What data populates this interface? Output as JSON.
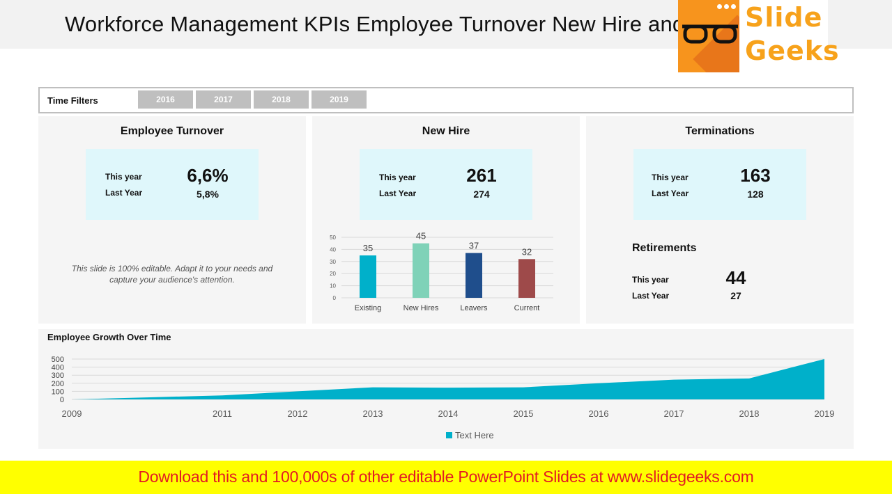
{
  "header": {
    "title": "Workforce Management KPIs Employee Turnover New Hire and Terminations"
  },
  "logo": {
    "line1": "Slide",
    "line2": "Geeks",
    "colors": {
      "square": "#f7941d",
      "text": "#f7a21b"
    }
  },
  "filters": {
    "label": "Time Filters",
    "years": [
      "2016",
      "2017",
      "2018",
      "2019"
    ]
  },
  "turnover": {
    "title": "Employee Turnover",
    "this_year_label": "This year",
    "last_year_label": "Last Year",
    "this_year": "6,6%",
    "last_year": "5,8%",
    "note": "This slide is 100% editable. Adapt it to your needs and capture your audience's attention."
  },
  "new_hire": {
    "title": "New Hire",
    "this_year_label": "This year",
    "last_year_label": "Last Year",
    "this_year": "261",
    "last_year": "274"
  },
  "terminations": {
    "title": "Terminations",
    "this_year_label": "This year",
    "last_year_label": "Last Year",
    "this_year": "163",
    "last_year": "128"
  },
  "retirements": {
    "title": "Retirements",
    "this_year_label": "This year",
    "last_year_label": "Last Year",
    "this_year": "44",
    "last_year": "27"
  },
  "growth": {
    "title": "Employee Growth Over Time"
  },
  "chart_data": [
    {
      "type": "bar",
      "categories": [
        "Existing",
        "New Hires",
        "Leavers",
        "Current"
      ],
      "values": [
        35,
        45,
        37,
        32
      ],
      "colors": [
        "#00b0ca",
        "#7fd2b8",
        "#1f4e8c",
        "#9e4a4a"
      ],
      "ylim": [
        0,
        50
      ],
      "yticks": [
        0,
        10,
        20,
        30,
        40,
        50
      ],
      "grid": true,
      "data_labels": true
    },
    {
      "type": "area",
      "x": [
        2009,
        2010,
        2011,
        2012,
        2013,
        2014,
        2015,
        2016,
        2017,
        2018,
        2019
      ],
      "xticks": [
        2009,
        2011,
        2012,
        2013,
        2014,
        2015,
        2016,
        2017,
        2018,
        2019
      ],
      "series": [
        {
          "name": "Text Here",
          "values": [
            0,
            25,
            50,
            100,
            150,
            145,
            150,
            200,
            245,
            260,
            500
          ],
          "color": "#00b0ca"
        }
      ],
      "ylim": [
        0,
        500
      ],
      "yticks": [
        0,
        100,
        200,
        300,
        400,
        500
      ],
      "grid": true,
      "legend": "bottom"
    }
  ],
  "banner": {
    "text": "Download this and 100,000s of other editable PowerPoint Slides at www.slidegeeks.com",
    "colors": {
      "background": "#ffff00",
      "text": "#e31b23"
    }
  }
}
